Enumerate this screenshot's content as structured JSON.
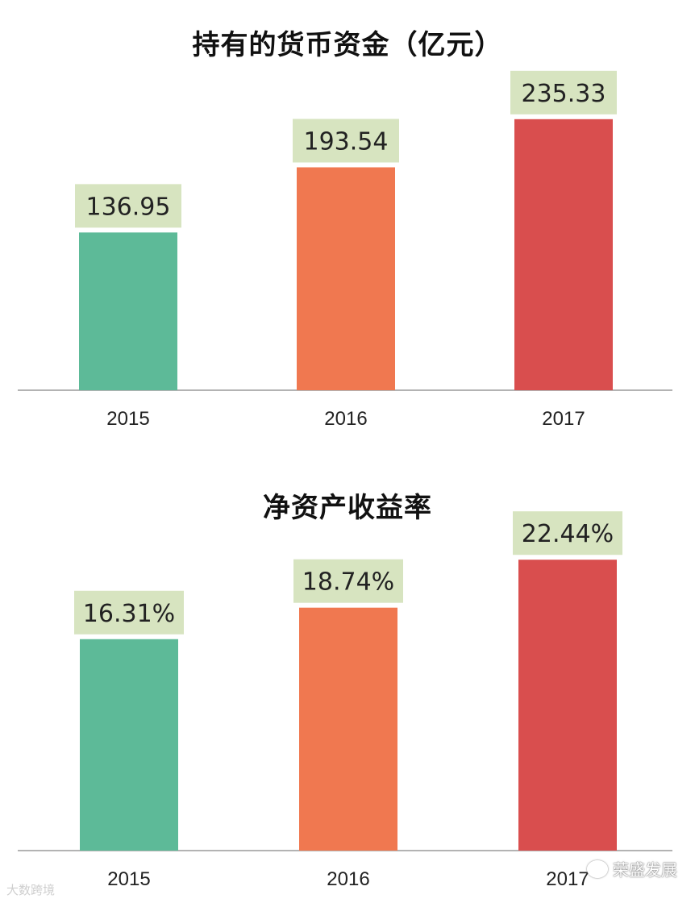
{
  "watermarks": {
    "left": "大数跨境",
    "right": "荣盛发展"
  },
  "colors": [
    "#5dba98",
    "#f07850",
    "#d94e4e"
  ],
  "label_bg": "#d7e4c0",
  "chart_data": [
    {
      "type": "bar",
      "title": "持有的货币资金（亿元）",
      "categories": [
        "2015",
        "2016",
        "2017"
      ],
      "values": [
        136.95,
        193.54,
        235.33
      ],
      "labels": [
        "136.95",
        "193.54",
        "235.33"
      ],
      "ylim": [
        0,
        280
      ],
      "grid": false
    },
    {
      "type": "bar",
      "title": "净资产收益率",
      "categories": [
        "2015",
        "2016",
        "2017"
      ],
      "values": [
        16.31,
        18.74,
        22.44
      ],
      "labels": [
        "16.31%",
        "18.74%",
        "22.44%"
      ],
      "ylim": [
        0,
        25.5
      ],
      "grid": false
    }
  ]
}
